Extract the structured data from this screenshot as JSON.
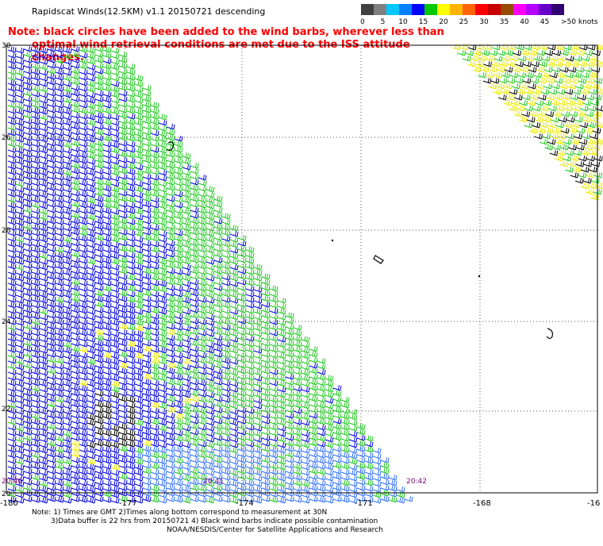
{
  "title": "Rapidscat Winds(12.5KM) v1.1 20150721 descending",
  "note": {
    "line1": "Note: black circles have been added to the wind barbs, wherever less than",
    "line2": "optimal wind retrieval conditions are met due to the ISS attitude changes."
  },
  "colorbar": {
    "unit_label": ">50 knots",
    "labels": [
      "0",
      "5",
      "10",
      "15",
      "20",
      "25",
      "30",
      "35",
      "40",
      "45"
    ],
    "colors": [
      "#404040",
      "#808080",
      "#00c8ff",
      "#0080ff",
      "#0000ff",
      "#00c800",
      "#ffff00",
      "#ffb400",
      "#ff6400",
      "#ff0000",
      "#c80000",
      "#964b00",
      "#ff00ff",
      "#b400ff",
      "#6400c8",
      "#300070"
    ]
  },
  "map": {
    "lat_labels": [
      "30",
      "26",
      "28",
      "24",
      "22",
      "20"
    ],
    "lon_labels": [
      "-180",
      "-177",
      "-174",
      "-171",
      "-168",
      "-16"
    ],
    "time_labels": [
      "20:40",
      "20:41",
      "20:42"
    ],
    "barb_colors": {
      "low": "#0000e0",
      "mid_low": "#3070ff",
      "mid": "#20c820",
      "high": "#e8e800",
      "contaminated": "#000000"
    }
  },
  "footer": {
    "line1": "Note: 1) Times are GMT 2)Times along bottom correspond to measurement at 30N",
    "line2": "3)Data buffer is 22 hrs from 20150721 4) Black wind barbs indicate possible contamination",
    "line3": "NOAA/NESDIS/Center for Satellite Applications and Research"
  }
}
